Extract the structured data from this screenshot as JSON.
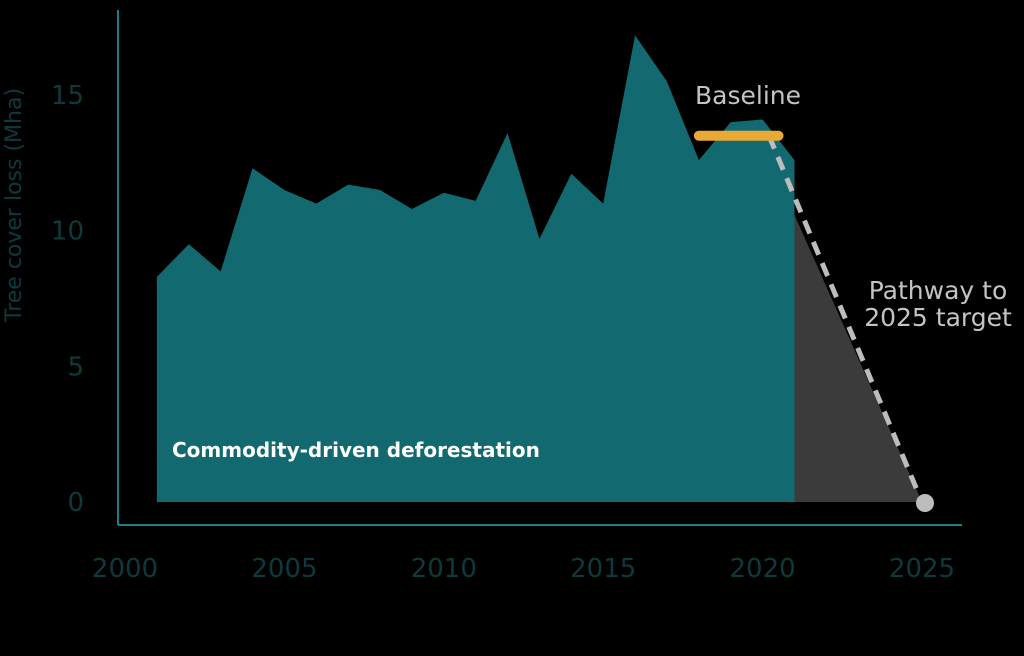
{
  "chart_data": {
    "type": "area",
    "ylabel": "Tree cover loss (Mha)",
    "xlim": [
      2000,
      2026
    ],
    "ylim": [
      0,
      18
    ],
    "x_ticks": [
      "2000",
      "2005",
      "2010",
      "2015",
      "2020",
      "2025"
    ],
    "x_tick_values": [
      2000,
      2005,
      2010,
      2015,
      2020,
      2025
    ],
    "y_ticks": [
      "0",
      "5",
      "10",
      "15"
    ],
    "y_tick_values": [
      0,
      5,
      10,
      15
    ],
    "series": [
      {
        "name": "Commodity-driven deforestation",
        "x": [
          2001,
          2002,
          2003,
          2004,
          2005,
          2006,
          2007,
          2008,
          2009,
          2010,
          2011,
          2012,
          2013,
          2014,
          2015,
          2016,
          2017,
          2018,
          2019,
          2020,
          2021
        ],
        "values": [
          8.3,
          9.5,
          8.5,
          12.3,
          11.5,
          11.0,
          11.7,
          11.5,
          10.8,
          11.4,
          11.1,
          13.6,
          9.7,
          12.1,
          11.0,
          17.2,
          15.5,
          12.6,
          14.0,
          14.1,
          12.6
        ],
        "color": "#126a70"
      }
    ],
    "baseline": {
      "label": "Baseline",
      "x": [
        2018,
        2020.5
      ],
      "value": 13.5,
      "color": "#e8a935"
    },
    "pathway": {
      "label_lines": [
        "Pathway to",
        "2025 target"
      ],
      "x": [
        2020.2,
        2025
      ],
      "values": [
        13.5,
        0
      ],
      "fill_color": "#3b3b3b",
      "line_color": "#bdbdbd",
      "end_marker_color": "#bdbdbd"
    },
    "axis_color": "#1d8087",
    "grid": false,
    "legend": "none"
  }
}
